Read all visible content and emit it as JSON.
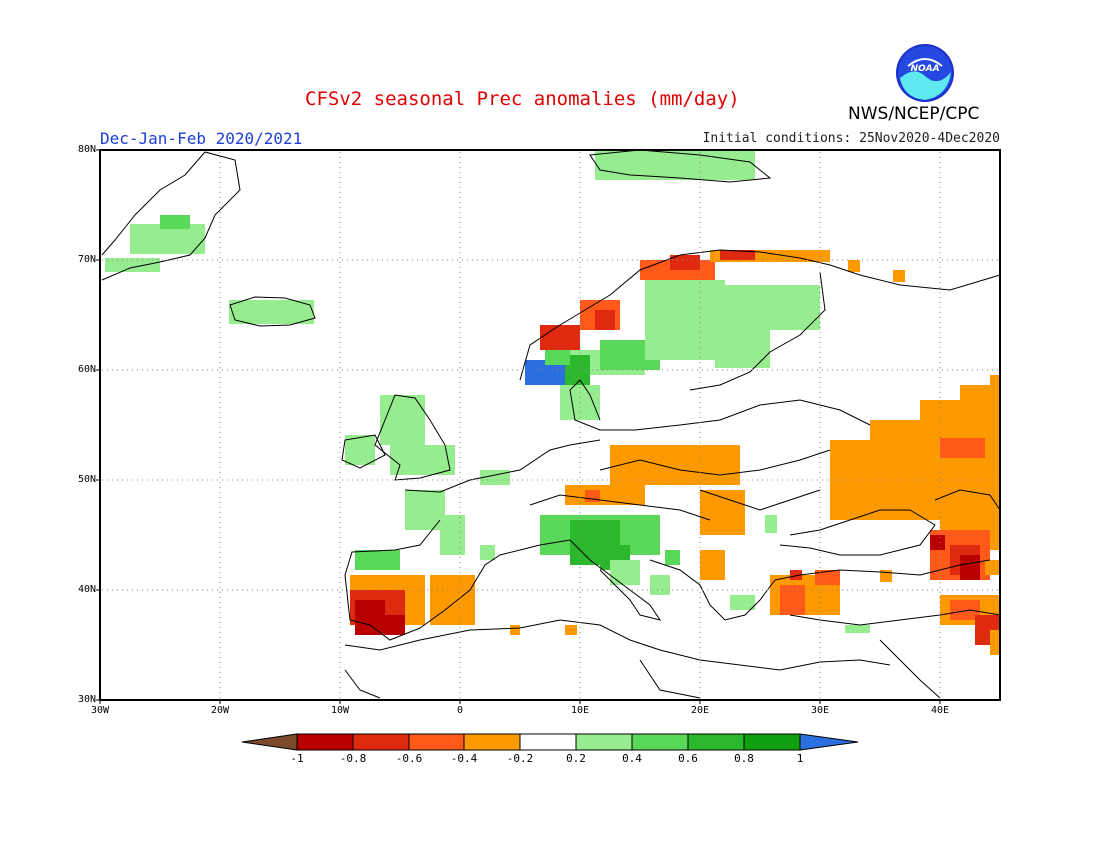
{
  "header": {
    "title": "CFSv2 seasonal Prec anomalies (mm/day)",
    "season": "Dec-Jan-Feb 2020/2021",
    "initial_conditions": "Initial conditions: 25Nov2020-4Dec2020",
    "agency": "NWS/NCEP/CPC",
    "logo_text": "NOAA"
  },
  "axes": {
    "lat_labels": [
      "80N",
      "70N",
      "60N",
      "50N",
      "40N",
      "30N"
    ],
    "lon_labels": [
      "30W",
      "20W",
      "10W",
      "0",
      "10E",
      "20E",
      "30E",
      "40E"
    ],
    "lat_range": [
      30,
      80
    ],
    "lon_range": [
      -30,
      45
    ]
  },
  "colorbar": {
    "tick_labels": [
      "-1",
      "-0.8",
      "-0.6",
      "-0.4",
      "-0.2",
      "0.2",
      "0.4",
      "0.6",
      "0.8",
      "1"
    ],
    "colors": [
      "#7a4a2a",
      "#b80000",
      "#e02a10",
      "#ff5a1a",
      "#ff9900",
      "#ffffff",
      "#98ec90",
      "#5ad85a",
      "#2cb82c",
      "#11a011",
      "#2a6ee0"
    ]
  },
  "anomalies": {
    "wet_light": "#98ec90",
    "wet_medium": "#5ad85a",
    "wet_strong": "#2cb82c",
    "wet_extreme": "#2a6ee0",
    "dry_light": "#ff9900",
    "dry_medium": "#ff5a1a",
    "dry_strong": "#e02a10",
    "dry_extreme": "#b80000"
  }
}
